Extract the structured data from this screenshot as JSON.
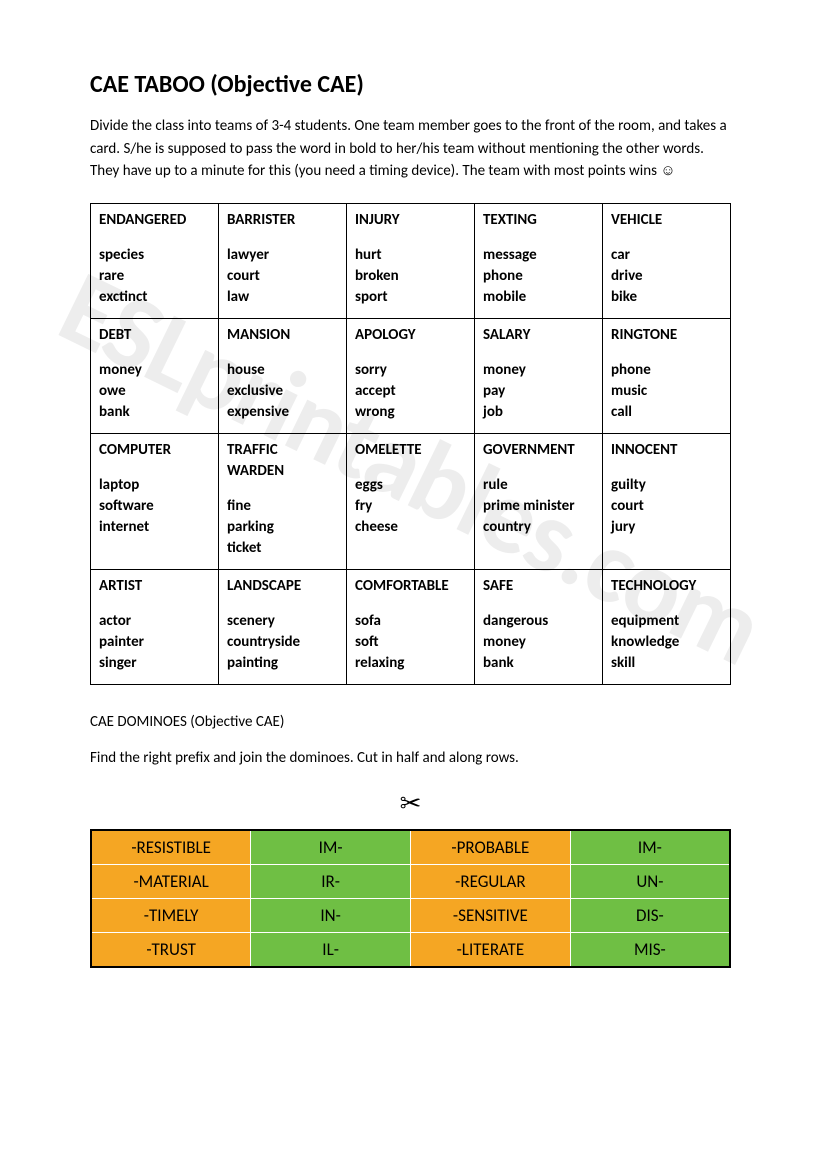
{
  "title": "CAE TABOO (Objective CAE)",
  "instructions": "Divide the class into teams of 3-4 students. One team member goes to the front of the room, and takes a card. S/he is supposed to pass the word in bold to her/his team without mentioning the other words. They have up to a minute for this (you need a timing device). The team with most points wins ",
  "smiley": "☺",
  "taboo": {
    "rows": [
      [
        {
          "head": "ENDANGERED",
          "clues": [
            "species",
            "rare",
            "exctinct"
          ]
        },
        {
          "head": "BARRISTER",
          "clues": [
            "lawyer",
            "court",
            "law"
          ]
        },
        {
          "head": "INJURY",
          "clues": [
            "hurt",
            "broken",
            "sport"
          ]
        },
        {
          "head": "TEXTING",
          "clues": [
            "message",
            "phone",
            "mobile"
          ]
        },
        {
          "head": "VEHICLE",
          "clues": [
            "car",
            "drive",
            "bike"
          ]
        }
      ],
      [
        {
          "head": "DEBT",
          "clues": [
            "money",
            "owe",
            "bank"
          ]
        },
        {
          "head": "MANSION",
          "clues": [
            "house",
            "exclusive",
            "expensive"
          ]
        },
        {
          "head": "APOLOGY",
          "clues": [
            "sorry",
            "accept",
            "wrong"
          ]
        },
        {
          "head": "SALARY",
          "clues": [
            "money",
            "pay",
            "job"
          ]
        },
        {
          "head": "RINGTONE",
          "clues": [
            "phone",
            "music",
            "call"
          ]
        }
      ],
      [
        {
          "head": "COMPUTER",
          "clues": [
            "laptop",
            "software",
            "internet"
          ]
        },
        {
          "head": "TRAFFIC",
          "head2": "WARDEN",
          "clues": [
            "fine",
            "parking",
            "ticket"
          ]
        },
        {
          "head": "OMELETTE",
          "clues": [
            "eggs",
            "fry",
            "cheese"
          ]
        },
        {
          "head": "GOVERNMENT",
          "clues": [
            "rule",
            "prime minister",
            "country"
          ]
        },
        {
          "head": "INNOCENT",
          "clues": [
            "guilty",
            "court",
            "jury"
          ]
        }
      ],
      [
        {
          "head": "ARTIST",
          "clues": [
            "actor",
            "painter",
            "singer"
          ]
        },
        {
          "head": "LANDSCAPE",
          "clues": [
            "scenery",
            "countryside",
            "painting"
          ]
        },
        {
          "head": "COMFORTABLE",
          "clues": [
            "sofa",
            "soft",
            "relaxing"
          ]
        },
        {
          "head": "SAFE",
          "clues": [
            "dangerous",
            "money",
            "bank"
          ]
        },
        {
          "head": "TECHNOLOGY",
          "clues": [
            "equipment",
            "knowledge",
            "skill"
          ]
        }
      ]
    ]
  },
  "dominoes_title": "CAE DOMINOES (Objective CAE)",
  "dominoes_instructions": "Find the right prefix and join the dominoes. Cut in half and along rows.",
  "scissors": "✂",
  "dominoes": {
    "colors": {
      "orange": "#f5a623",
      "green": "#6fbf44",
      "cell_border": "#ffffff",
      "outer_border": "#000000"
    },
    "font_size": 17,
    "rows": [
      [
        {
          "text": "-RESISTIBLE",
          "bg": "orange"
        },
        {
          "text": "IM-",
          "bg": "green"
        },
        {
          "text": "-PROBABLE",
          "bg": "orange"
        },
        {
          "text": "IM-",
          "bg": "green"
        }
      ],
      [
        {
          "text": "-MATERIAL",
          "bg": "orange"
        },
        {
          "text": "IR-",
          "bg": "green"
        },
        {
          "text": "-REGULAR",
          "bg": "orange"
        },
        {
          "text": "UN-",
          "bg": "green"
        }
      ],
      [
        {
          "text": "-TIMELY",
          "bg": "orange"
        },
        {
          "text": "IN-",
          "bg": "green"
        },
        {
          "text": "-SENSITIVE",
          "bg": "orange"
        },
        {
          "text": "DIS-",
          "bg": "green"
        }
      ],
      [
        {
          "text": "-TRUST",
          "bg": "orange"
        },
        {
          "text": "IL-",
          "bg": "green"
        },
        {
          "text": "-LITERATE",
          "bg": "orange"
        },
        {
          "text": "MIS-",
          "bg": "green"
        }
      ]
    ]
  },
  "watermark": "ESLprintables.com"
}
